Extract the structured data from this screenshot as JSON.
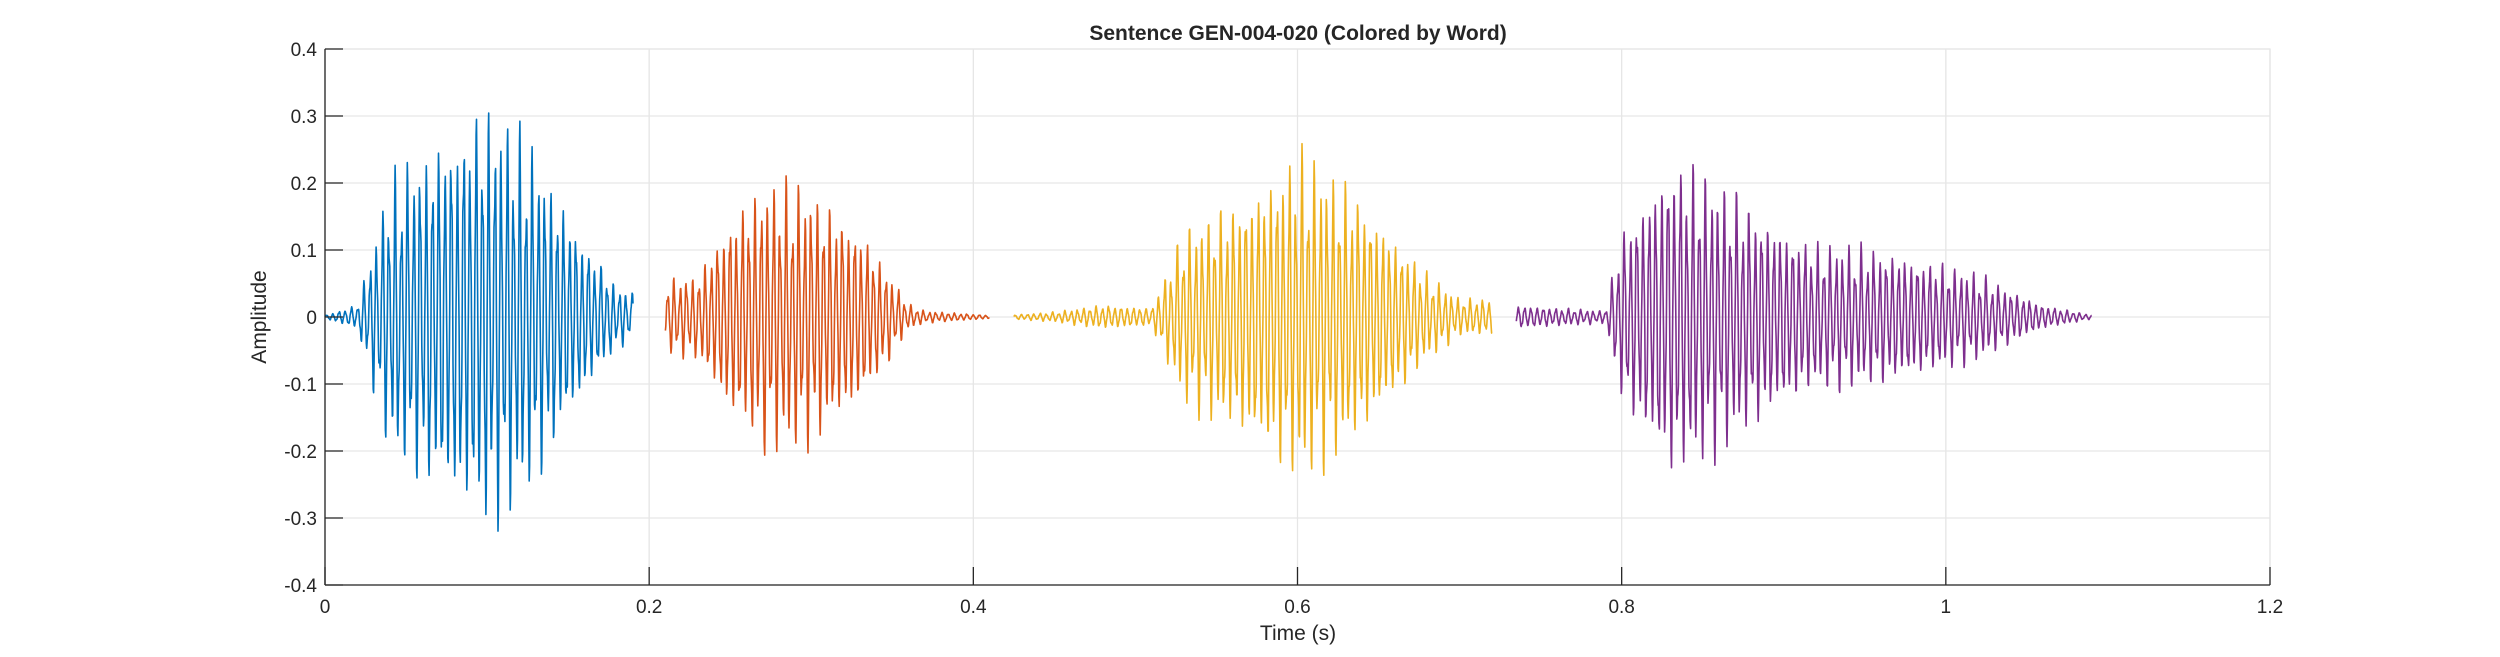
{
  "chart_data": {
    "type": "line",
    "title": "Sentence GEN-004-020 (Colored by Word)",
    "xlabel": "Time (s)",
    "ylabel": "Amplitude",
    "xlim": [
      0,
      1.2
    ],
    "ylim": [
      -0.4,
      0.4
    ],
    "xticks": [
      0,
      0.2,
      0.4,
      0.6,
      0.8,
      1,
      1.2
    ],
    "xtick_labels": [
      "0",
      "0.2",
      "0.4",
      "0.6",
      "0.8",
      "1",
      "1.2"
    ],
    "yticks": [
      -0.4,
      -0.3,
      -0.2,
      -0.1,
      0,
      0.1,
      0.2,
      0.3,
      0.4
    ],
    "ytick_labels": [
      "-0.4",
      "-0.3",
      "-0.2",
      "-0.1",
      "0",
      "0.1",
      "0.2",
      "0.3",
      "0.4"
    ],
    "grid": true,
    "series": [
      {
        "color": "#0072BD",
        "x": [
          0,
          0.02,
          0.04,
          0.07,
          0.1,
          0.13,
          0.16,
          0.18,
          0.19
        ],
        "envelope": [
          0.003,
          0.02,
          0.22,
          0.3,
          0.35,
          0.27,
          0.13,
          0.05,
          0.04
        ]
      },
      {
        "color": "#D95319",
        "x": [
          0.21,
          0.23,
          0.25,
          0.27,
          0.3,
          0.33,
          0.36,
          0.37,
          0.41
        ],
        "envelope": [
          0.06,
          0.07,
          0.17,
          0.22,
          0.21,
          0.15,
          0.02,
          0.01,
          0.003
        ]
      },
      {
        "color": "#EDB120",
        "x": [
          0.425,
          0.45,
          0.48,
          0.51,
          0.53,
          0.56,
          0.6,
          0.64,
          0.68,
          0.7,
          0.72
        ],
        "envelope": [
          0.004,
          0.008,
          0.02,
          0.015,
          0.14,
          0.19,
          0.27,
          0.2,
          0.07,
          0.03,
          0.03
        ]
      },
      {
        "color": "#7E2F8E",
        "x": [
          0.735,
          0.76,
          0.79,
          0.8,
          0.83,
          0.87,
          0.92,
          0.97,
          1.02,
          1.06,
          1.09
        ],
        "envelope": [
          0.02,
          0.015,
          0.01,
          0.14,
          0.27,
          0.2,
          0.12,
          0.11,
          0.07,
          0.02,
          0.003
        ]
      }
    ]
  }
}
